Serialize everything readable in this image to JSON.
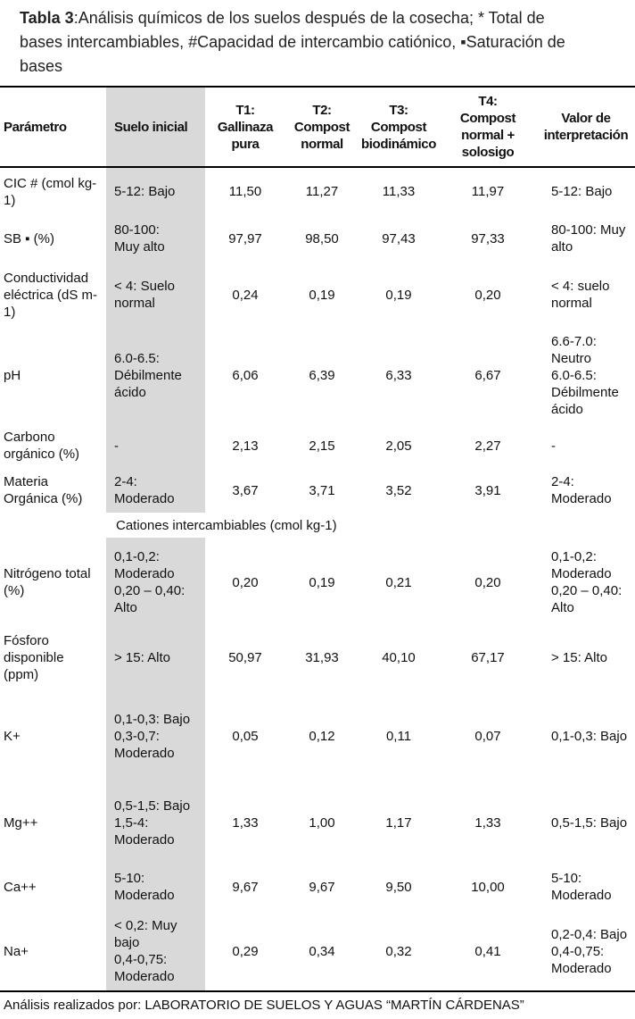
{
  "title": {
    "label": "Tabla 3",
    "rest": ":Análisis químicos de los suelos después de la cosecha; * Total de bases intercambiables, #Capacidad de intercambio catiónico, ▪Saturación de bases"
  },
  "table": {
    "headers": [
      "Parámetro",
      "Suelo inicial",
      "T1:\nGallinaza\npura",
      "T2:\nCompost\nnormal",
      "T3:\nCompost\nbiodinámico",
      "T4:\nCompost\nnormal +\nsolosigo",
      "Valor de\ninterpretación"
    ],
    "section_label": "Cationes intercambiables (cmol kg-1)",
    "rows": [
      {
        "param": "CIC # (cmol kg-1)",
        "suelo": "5-12: Bajo",
        "t1": "11,50",
        "t2": "11,27",
        "t3": "11,33",
        "t4": "11,97",
        "valor": "5-12: Bajo"
      },
      {
        "param": "SB ▪ (%)",
        "suelo": "80-100:\nMuy alto",
        "t1": "97,97",
        "t2": "98,50",
        "t3": "97,43",
        "t4": "97,33",
        "valor": "80-100: Muy alto"
      },
      {
        "param": "Conductividad eléctrica (dS m-1)",
        "suelo": "< 4: Suelo normal",
        "t1": "0,24",
        "t2": "0,19",
        "t3": "0,19",
        "t4": "0,20",
        "valor": "< 4: suelo normal"
      },
      {
        "param": "pH",
        "suelo": "6.0-6.5: Débilmente ácido",
        "t1": "6,06",
        "t2": "6,39",
        "t3": "6,33",
        "t4": "6,67",
        "valor": "6.6-7.0: Neutro\n6.0-6.5: Débilmente ácido"
      },
      {
        "param": "Carbono orgánico (%)",
        "suelo": "-",
        "t1": "2,13",
        "t2": "2,15",
        "t3": "2,05",
        "t4": "2,27",
        "valor": "-"
      },
      {
        "param": "Materia Orgánica (%)",
        "suelo": "2-4: Moderado",
        "t1": "3,67",
        "t2": "3,71",
        "t3": "3,52",
        "t4": "3,91",
        "valor": "2-4: Moderado"
      },
      {
        "param": "Nitrógeno total (%)",
        "suelo": "0,1-0,2: Moderado\n0,20 – 0,40: Alto",
        "t1": "0,20",
        "t2": "0,19",
        "t3": "0,21",
        "t4": "0,20",
        "valor": "0,1-0,2: Moderado\n0,20 – 0,40: Alto"
      },
      {
        "param": "Fósforo disponible (ppm)",
        "suelo": "> 15: Alto",
        "t1": "50,97",
        "t2": "31,93",
        "t3": "40,10",
        "t4": "67,17",
        "valor": "> 15: Alto"
      },
      {
        "param": "K+",
        "suelo": "0,1-0,3: Bajo\n0,3-0,7: Moderado",
        "t1": "0,05",
        "t2": "0,12",
        "t3": "0,11",
        "t4": "0,07",
        "valor": "0,1-0,3: Bajo"
      },
      {
        "param": "Mg++",
        "suelo": "0,5-1,5: Bajo\n1,5-4: Moderado",
        "t1": "1,33",
        "t2": "1,00",
        "t3": "1,17",
        "t4": "1,33",
        "valor": "0,5-1,5: Bajo"
      },
      {
        "param": "Ca++",
        "suelo": "5-10: Moderado",
        "t1": "9,67",
        "t2": "9,67",
        "t3": "9,50",
        "t4": "10,00",
        "valor": "5-10: Moderado"
      },
      {
        "param": "Na+",
        "suelo": "< 0,2: Muy bajo\n0,4-0,75: Moderado",
        "t1": "0,29",
        "t2": "0,34",
        "t3": "0,32",
        "t4": "0,41",
        "valor": "0,2-0,4: Bajo\n0,4-0,75: Moderado"
      }
    ]
  },
  "footer": {
    "text": "Análisis realizados por: LABORATORIO DE SUELOS Y AGUAS “MARTÍN CÁRDENAS”"
  }
}
